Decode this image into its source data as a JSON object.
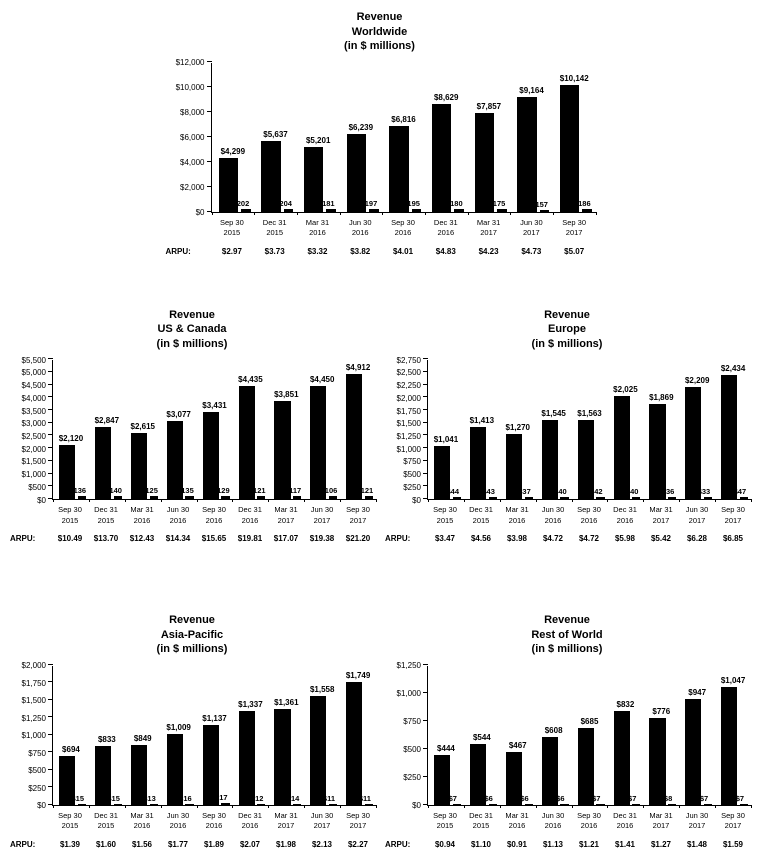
{
  "colors": {
    "bar": "#000000",
    "axis": "#000000",
    "text": "#000000",
    "background": "#ffffff"
  },
  "chart_data": [
    {
      "type": "bar",
      "title": "Revenue",
      "subtitle": "Worldwide",
      "units_label": "(in $ millions)",
      "categories": [
        [
          "Sep 30",
          "2015"
        ],
        [
          "Dec 31",
          "2015"
        ],
        [
          "Mar 31",
          "2016"
        ],
        [
          "Jun 30",
          "2016"
        ],
        [
          "Sep 30",
          "2016"
        ],
        [
          "Dec 31",
          "2016"
        ],
        [
          "Mar 31",
          "2017"
        ],
        [
          "Jun 30",
          "2017"
        ],
        [
          "Sep 30",
          "2017"
        ]
      ],
      "values": [
        4299,
        5637,
        5201,
        6239,
        6816,
        8629,
        7857,
        9164,
        10142
      ],
      "value_labels": [
        "$4,299",
        "$5,637",
        "$5,201",
        "$6,239",
        "$6,816",
        "$8,629",
        "$7,857",
        "$9,164",
        "$10,142"
      ],
      "secondary_values": [
        202,
        204,
        181,
        197,
        195,
        180,
        175,
        157,
        186
      ],
      "secondary_labels": [
        "$202",
        "$204",
        "$181",
        "$197",
        "$195",
        "$180",
        "$175",
        "$157",
        "$186"
      ],
      "arpu_label": "ARPU:",
      "arpu": [
        "$2.97",
        "$3.73",
        "$3.32",
        "$3.82",
        "$4.01",
        "$4.83",
        "$4.23",
        "$4.73",
        "$5.07"
      ],
      "ylim": [
        0,
        12000
      ],
      "ytick_step": 2000,
      "ytick_labels": [
        "$0",
        "$2,000",
        "$4,000",
        "$6,000",
        "$8,000",
        "$10,000",
        "$12,000"
      ]
    },
    {
      "type": "bar",
      "title": "Revenue",
      "subtitle": "US & Canada",
      "units_label": "(in $ millions)",
      "categories": [
        [
          "Sep 30",
          "2015"
        ],
        [
          "Dec 31",
          "2015"
        ],
        [
          "Mar 31",
          "2016"
        ],
        [
          "Jun 30",
          "2016"
        ],
        [
          "Sep 30",
          "2016"
        ],
        [
          "Dec 31",
          "2016"
        ],
        [
          "Mar 31",
          "2017"
        ],
        [
          "Jun 30",
          "2017"
        ],
        [
          "Sep 30",
          "2017"
        ]
      ],
      "values": [
        2120,
        2847,
        2615,
        3077,
        3431,
        4435,
        3851,
        4450,
        4912
      ],
      "value_labels": [
        "$2,120",
        "$2,847",
        "$2,615",
        "$3,077",
        "$3,431",
        "$4,435",
        "$3,851",
        "$4,450",
        "$4,912"
      ],
      "secondary_values": [
        136,
        140,
        125,
        135,
        129,
        121,
        117,
        106,
        121
      ],
      "secondary_labels": [
        "$136",
        "$140",
        "$125",
        "$135",
        "$129",
        "$121",
        "$117",
        "$106",
        "$121"
      ],
      "arpu_label": "ARPU:",
      "arpu": [
        "$10.49",
        "$13.70",
        "$12.43",
        "$14.34",
        "$15.65",
        "$19.81",
        "$17.07",
        "$19.38",
        "$21.20"
      ],
      "ylim": [
        0,
        5500
      ],
      "ytick_step": 500,
      "ytick_labels": [
        "$0",
        "$500",
        "$1,000",
        "$1,500",
        "$2,000",
        "$2,500",
        "$3,000",
        "$3,500",
        "$4,000",
        "$4,500",
        "$5,000",
        "$5,500"
      ]
    },
    {
      "type": "bar",
      "title": "Revenue",
      "subtitle": "Europe",
      "units_label": "(in $ millions)",
      "categories": [
        [
          "Sep 30",
          "2015"
        ],
        [
          "Dec 31",
          "2015"
        ],
        [
          "Mar 31",
          "2016"
        ],
        [
          "Jun 30",
          "2016"
        ],
        [
          "Sep 30",
          "2016"
        ],
        [
          "Dec 31",
          "2016"
        ],
        [
          "Mar 31",
          "2017"
        ],
        [
          "Jun 30",
          "2017"
        ],
        [
          "Sep 30",
          "2017"
        ]
      ],
      "values": [
        1041,
        1413,
        1270,
        1545,
        1563,
        2025,
        1869,
        2209,
        2434
      ],
      "value_labels": [
        "$1,041",
        "$1,413",
        "$1,270",
        "$1,545",
        "$1,563",
        "$2,025",
        "$1,869",
        "$2,209",
        "$2,434"
      ],
      "secondary_values": [
        44,
        43,
        37,
        40,
        42,
        40,
        36,
        33,
        47
      ],
      "secondary_labels": [
        "$44",
        "$43",
        "$37",
        "$40",
        "$42",
        "$40",
        "$36",
        "$33",
        "$47"
      ],
      "arpu_label": "ARPU:",
      "arpu": [
        "$3.47",
        "$4.56",
        "$3.98",
        "$4.72",
        "$4.72",
        "$5.98",
        "$5.42",
        "$6.28",
        "$6.85"
      ],
      "ylim": [
        0,
        2750
      ],
      "ytick_step": 250,
      "ytick_labels": [
        "$0",
        "$250",
        "$500",
        "$750",
        "$1,000",
        "$1,250",
        "$1,500",
        "$1,750",
        "$2,000",
        "$2,250",
        "$2,500",
        "$2,750"
      ]
    },
    {
      "type": "bar",
      "title": "Revenue",
      "subtitle": "Asia-Pacific",
      "units_label": "(in $ millions)",
      "categories": [
        [
          "Sep 30",
          "2015"
        ],
        [
          "Dec 31",
          "2015"
        ],
        [
          "Mar 31",
          "2016"
        ],
        [
          "Jun 30",
          "2016"
        ],
        [
          "Sep 30",
          "2016"
        ],
        [
          "Dec 31",
          "2016"
        ],
        [
          "Mar 31",
          "2017"
        ],
        [
          "Jun 30",
          "2017"
        ],
        [
          "Sep 30",
          "2017"
        ]
      ],
      "values": [
        694,
        833,
        849,
        1009,
        1137,
        1337,
        1361,
        1558,
        1749
      ],
      "value_labels": [
        "$694",
        "$833",
        "$849",
        "$1,009",
        "$1,137",
        "$1,337",
        "$1,361",
        "$1,558",
        "$1,749"
      ],
      "secondary_values": [
        15,
        15,
        13,
        16,
        17,
        12,
        14,
        11,
        11
      ],
      "secondary_labels": [
        "$15",
        "$15",
        "$13",
        "$16",
        "$17",
        "$12",
        "$14",
        "$11",
        "$11"
      ],
      "arpu_label": "ARPU:",
      "arpu": [
        "$1.39",
        "$1.60",
        "$1.56",
        "$1.77",
        "$1.89",
        "$2.07",
        "$1.98",
        "$2.13",
        "$2.27"
      ],
      "ylim": [
        0,
        2000
      ],
      "ytick_step": 250,
      "ytick_labels": [
        "$0",
        "$250",
        "$500",
        "$750",
        "$1,000",
        "$1,250",
        "$1,500",
        "$1,750",
        "$2,000"
      ]
    },
    {
      "type": "bar",
      "title": "Revenue",
      "subtitle": "Rest of World",
      "units_label": "(in $ millions)",
      "categories": [
        [
          "Sep 30",
          "2015"
        ],
        [
          "Dec 31",
          "2015"
        ],
        [
          "Mar 31",
          "2016"
        ],
        [
          "Jun 30",
          "2016"
        ],
        [
          "Sep 30",
          "2016"
        ],
        [
          "Dec 31",
          "2016"
        ],
        [
          "Mar 31",
          "2017"
        ],
        [
          "Jun 30",
          "2017"
        ],
        [
          "Sep 30",
          "2017"
        ]
      ],
      "values": [
        444,
        544,
        467,
        608,
        685,
        832,
        776,
        947,
        1047
      ],
      "value_labels": [
        "$444",
        "$544",
        "$467",
        "$608",
        "$685",
        "$832",
        "$776",
        "$947",
        "$1,047"
      ],
      "secondary_values": [
        7,
        6,
        6,
        6,
        7,
        7,
        8,
        7,
        7
      ],
      "secondary_labels": [
        "$7",
        "$6",
        "$6",
        "$6",
        "$7",
        "$7",
        "$8",
        "$7",
        "$7"
      ],
      "arpu_label": "ARPU:",
      "arpu": [
        "$0.94",
        "$1.10",
        "$0.91",
        "$1.13",
        "$1.21",
        "$1.41",
        "$1.27",
        "$1.48",
        "$1.59"
      ],
      "ylim": [
        0,
        1250
      ],
      "ytick_step": 250,
      "ytick_labels": [
        "$0",
        "$250",
        "$500",
        "$750",
        "$1,000",
        "$1,250"
      ]
    }
  ]
}
